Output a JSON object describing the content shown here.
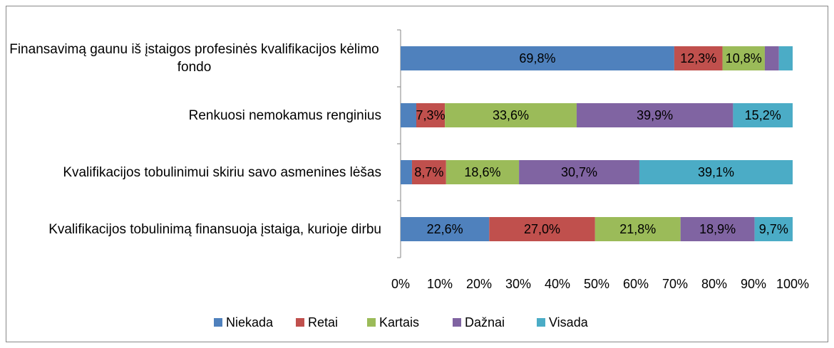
{
  "chart_data": {
    "type": "stacked_barh",
    "categories": [
      "Finansavimą gaunu iš įstaigos profesinės kvalifikacijos kėlimo fondo",
      "Renkuosi nemokamus renginius",
      "Kvalifikacijos tobulinimui skiriu savo asmenines lėšas",
      "Kvalifikacijos tobulinimą finansuoja įstaiga, kurioje dirbu"
    ],
    "series": [
      {
        "name": "Niekada",
        "color": "#4f81bd",
        "values": [
          69.8,
          4.0,
          2.9,
          22.6
        ],
        "value_labels": [
          "69,8%",
          null,
          null,
          "22,6%"
        ]
      },
      {
        "name": "Retai",
        "color": "#c0504d",
        "values": [
          12.3,
          7.3,
          8.7,
          27.0
        ],
        "value_labels": [
          "12,3%",
          "7,3%",
          "8,7%",
          "27,0%"
        ]
      },
      {
        "name": "Kartais",
        "color": "#9bbb59",
        "values": [
          10.8,
          33.6,
          18.6,
          21.8
        ],
        "value_labels": [
          "10,8%",
          "33,6%",
          "18,6%",
          "21,8%"
        ]
      },
      {
        "name": "Dažnai",
        "color": "#8064a2",
        "values": [
          3.6,
          39.9,
          30.7,
          18.9
        ],
        "value_labels": [
          null,
          "39,9%",
          "30,7%",
          "18,9%"
        ]
      },
      {
        "name": "Visada",
        "color": "#4bacc6",
        "values": [
          3.5,
          15.2,
          39.1,
          9.7
        ],
        "value_labels": [
          null,
          "15,2%",
          "39,1%",
          "9,7%"
        ]
      }
    ],
    "xlim": [
      0,
      100
    ],
    "xticks": [
      {
        "value": 0,
        "label": "0%"
      },
      {
        "value": 10,
        "label": "10%"
      },
      {
        "value": 20,
        "label": "20%"
      },
      {
        "value": 30,
        "label": "30%"
      },
      {
        "value": 40,
        "label": "40%"
      },
      {
        "value": 50,
        "label": "50%"
      },
      {
        "value": 60,
        "label": "60%"
      },
      {
        "value": 70,
        "label": "70%"
      },
      {
        "value": 80,
        "label": "80%"
      },
      {
        "value": 90,
        "label": "90%"
      },
      {
        "value": 100,
        "label": "100%"
      }
    ],
    "legend": "bottom"
  }
}
